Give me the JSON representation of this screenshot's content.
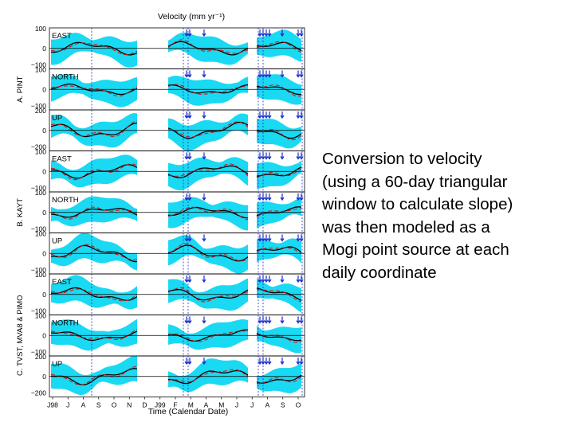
{
  "caption": {
    "lines": [
      "Conversion to velocity",
      "(using a 60-day triangular",
      "window to calculate slope)",
      "was then modeled as a",
      "Mogi point source at each",
      "daily coordinate"
    ]
  },
  "figure": {
    "title": "Velocity (mm yr⁻¹)",
    "xlabel": "Time (Calendar Date)",
    "month_labels": [
      "J98",
      "J",
      "A",
      "S",
      "O",
      "N",
      "D",
      "J99",
      "F",
      "M",
      "A",
      "M",
      "J",
      "J",
      "A",
      "S",
      "O"
    ],
    "groups": [
      {
        "label": "A. PINT"
      },
      {
        "label": "B. KAYT"
      },
      {
        "label": "C. TVST, MVA8 & PIMO"
      }
    ],
    "panels": [
      {
        "name": "EAST",
        "ticks": [
          "100",
          "0",
          "−100"
        ]
      },
      {
        "name": "NORTH",
        "ticks": [
          "100",
          "0",
          "−100"
        ]
      },
      {
        "name": "UP",
        "ticks": [
          "200",
          "0",
          "−200"
        ]
      },
      {
        "name": "EAST",
        "ticks": [
          "100",
          "0",
          "−100"
        ]
      },
      {
        "name": "NORTH",
        "ticks": [
          "100",
          "0",
          "−100"
        ]
      },
      {
        "name": "UP",
        "ticks": [
          "100",
          "0",
          "−100"
        ]
      },
      {
        "name": "EAST",
        "ticks": [
          "100",
          "0",
          "−100"
        ]
      },
      {
        "name": "NORTH",
        "ticks": [
          "100",
          "0",
          "−100"
        ]
      },
      {
        "name": "UP",
        "ticks": [
          "200",
          "0",
          "−200"
        ]
      }
    ],
    "colors": {
      "band": "#1ad9f2",
      "series_line": "#000000",
      "model_line": "#cc1a1a",
      "event_marker": "#1a2fc9"
    }
  }
}
